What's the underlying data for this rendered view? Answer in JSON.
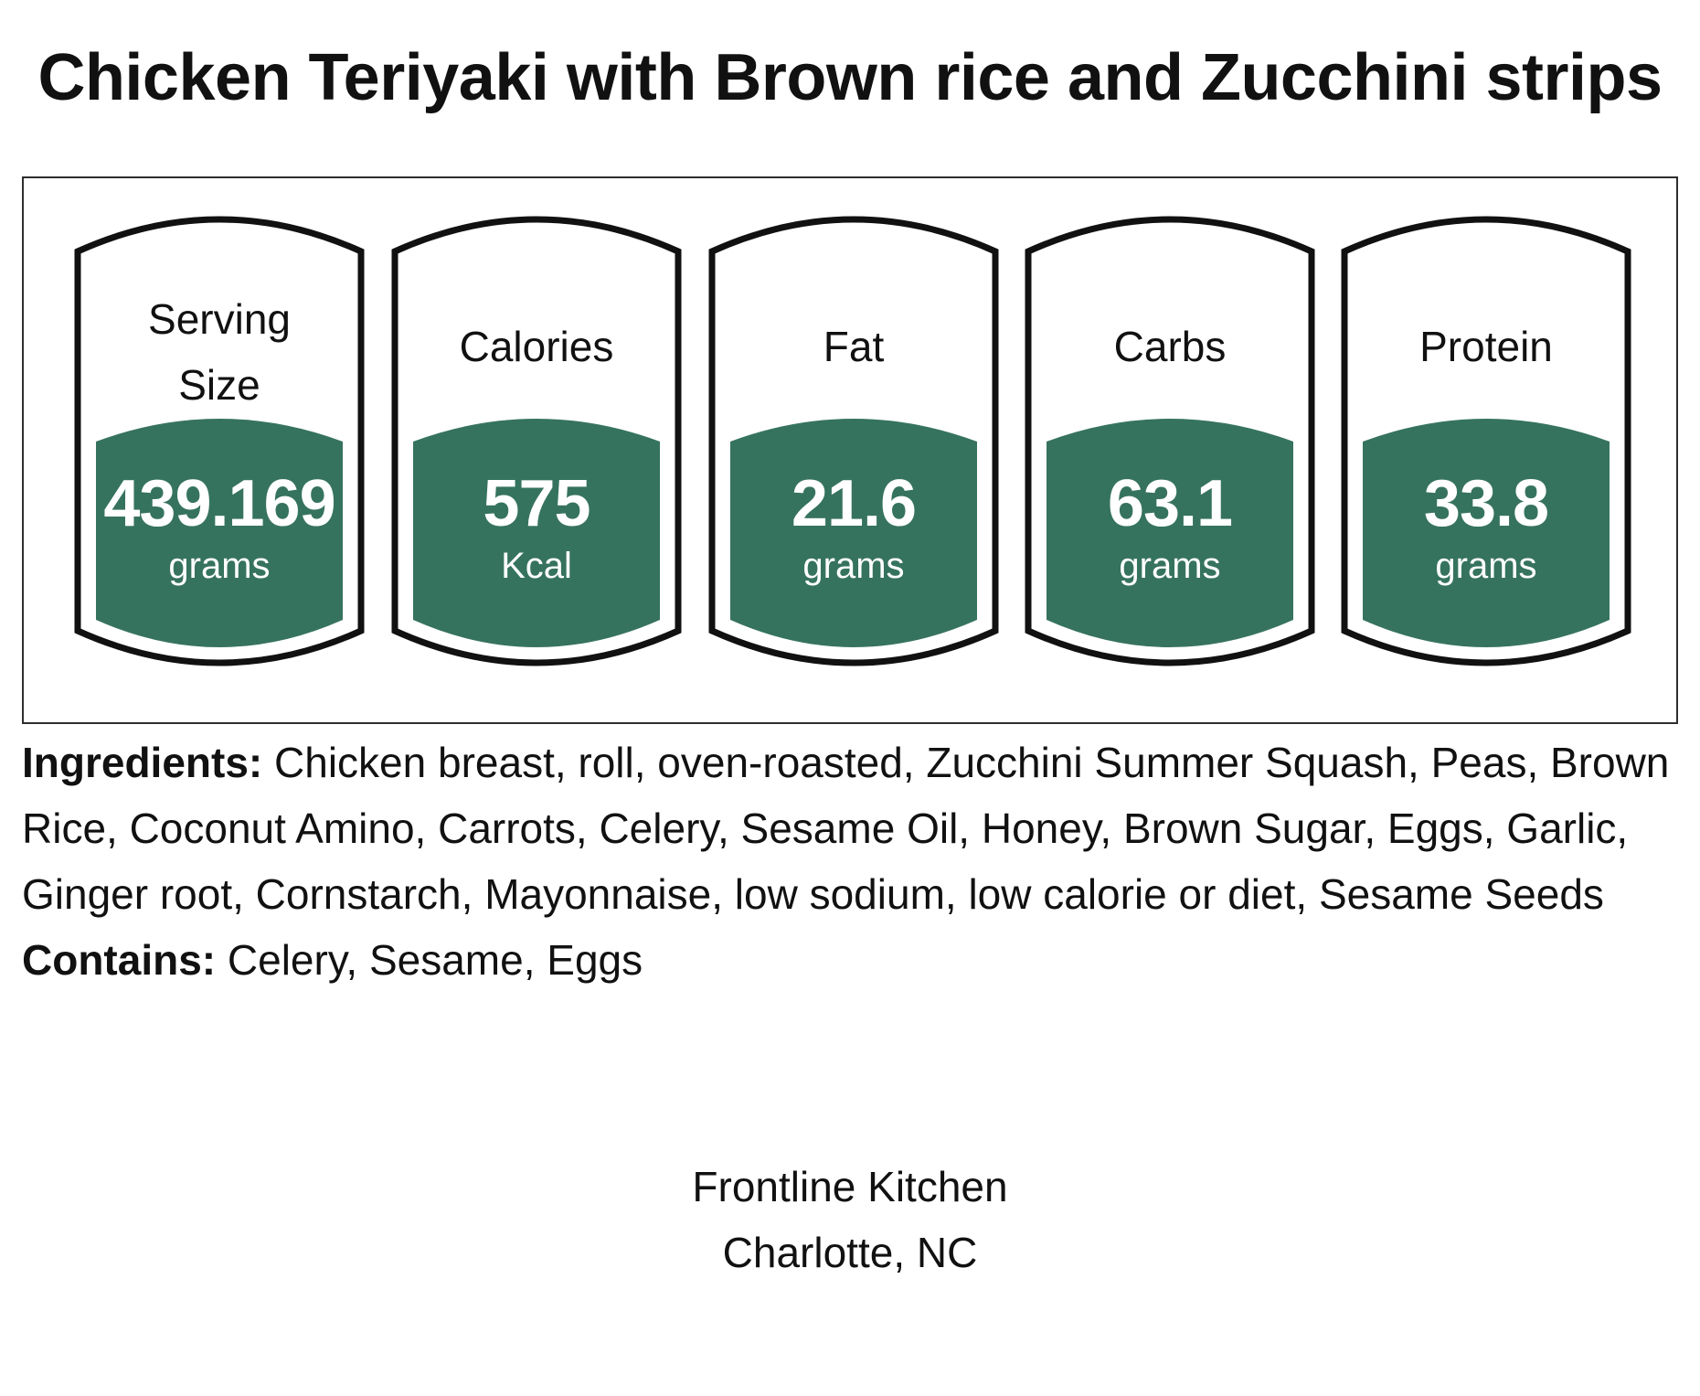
{
  "title": "Chicken Teriyaki with Brown rice and Zucchini strips",
  "colors": {
    "accent": "#36735f",
    "outline": "#111111"
  },
  "nutrition": [
    {
      "label": "Serving Size",
      "value": "439.169",
      "unit": "grams"
    },
    {
      "label": "Calories",
      "value": "575",
      "unit": "Kcal"
    },
    {
      "label": "Fat",
      "value": "21.6",
      "unit": "grams"
    },
    {
      "label": "Carbs",
      "value": "63.1",
      "unit": "grams"
    },
    {
      "label": "Protein",
      "value": "33.8",
      "unit": "grams"
    }
  ],
  "ingredients": {
    "label": "Ingredients:",
    "text": "Chicken breast, roll, oven-roasted, Zucchini Summer Squash, Peas, Brown Rice, Coconut Amino, Carrots, Celery, Sesame Oil, Honey, Brown Sugar, Eggs, Garlic, Ginger root, Cornstarch, Mayonnaise, low sodium, low calorie or diet, Sesame Seeds"
  },
  "contains": {
    "label": "Contains:",
    "text": "Celery, Sesame, Eggs"
  },
  "footer": {
    "name": "Frontline Kitchen",
    "location": "Charlotte, NC"
  }
}
